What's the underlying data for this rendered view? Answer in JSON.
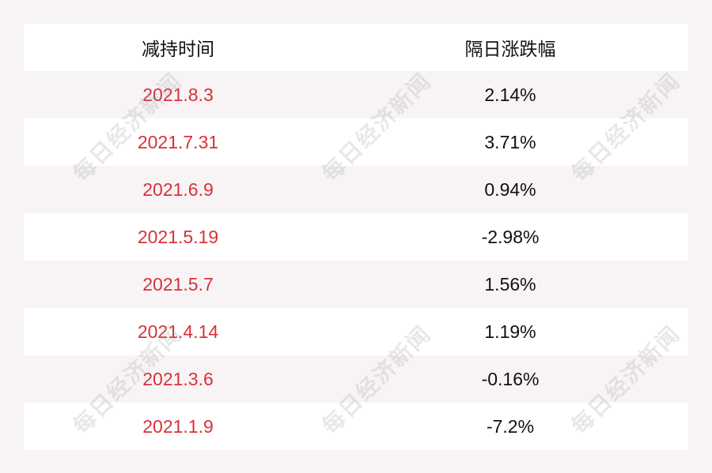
{
  "table": {
    "headers": [
      "减持时间",
      "隔日涨跌幅"
    ],
    "rows": [
      {
        "date": "2021.8.3",
        "change": "2.14%"
      },
      {
        "date": "2021.7.31",
        "change": "3.71%"
      },
      {
        "date": "2021.6.9",
        "change": "0.94%"
      },
      {
        "date": "2021.5.19",
        "change": "-2.98%"
      },
      {
        "date": "2021.5.7",
        "change": "1.56%"
      },
      {
        "date": "2021.4.14",
        "change": "1.19%"
      },
      {
        "date": "2021.3.6",
        "change": "-0.16%"
      },
      {
        "date": "2021.1.9",
        "change": "-7.2%"
      }
    ]
  },
  "watermark": "每日经济新闻",
  "colors": {
    "date_text": "#d9313a",
    "background": "#f8f4f5",
    "row_alt": "#ffffff"
  }
}
